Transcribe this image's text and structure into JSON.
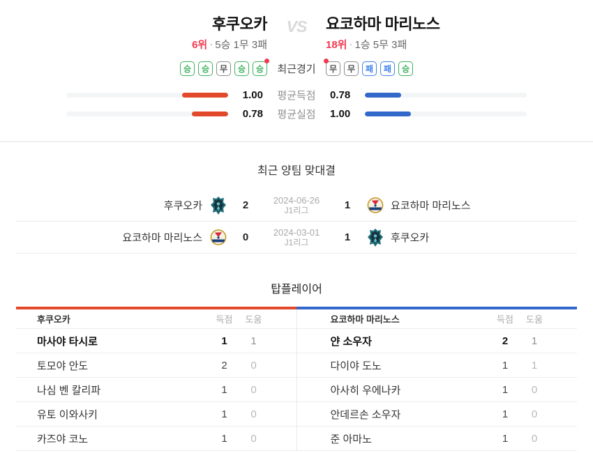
{
  "header": {
    "vs_label": "VS",
    "recent_label": "최근경기",
    "avg_goals_label": "평균득점",
    "avg_conceded_label": "평균실점",
    "rank_sep": "·",
    "home": {
      "name": "후쿠오카",
      "rank": "6위",
      "record": "5승 1무 3패",
      "form": [
        "승",
        "승",
        "무",
        "승",
        "승"
      ],
      "avg_goals": "1.00",
      "avg_conceded": "0.78"
    },
    "away": {
      "name": "요코하마 마리노스",
      "rank": "18위",
      "record": "1승 5무 3패",
      "form": [
        "무",
        "무",
        "패",
        "패",
        "승"
      ],
      "avg_goals": "0.78",
      "avg_conceded": "1.00"
    }
  },
  "h2h": {
    "title": "최근 양팀 맞대결",
    "matches": [
      {
        "home": "후쿠오카",
        "home_crest": "avispa-crest",
        "home_score": "2",
        "date": "2024-06-26",
        "league": "J1리그",
        "away_score": "1",
        "away_crest": "marinos-crest",
        "away": "요코하마 마리노스"
      },
      {
        "home": "요코하마 마리노스",
        "home_crest": "marinos-crest",
        "home_score": "0",
        "date": "2024-03-01",
        "league": "J1리그",
        "away_score": "1",
        "away_crest": "avispa-crest",
        "away": "후쿠오카"
      }
    ]
  },
  "top_players": {
    "title": "탑플레이어",
    "goals_label": "득점",
    "assists_label": "도움",
    "left": {
      "team": "후쿠오카",
      "players": [
        {
          "name": "마사야 타시로",
          "goals": "1",
          "assists": "1"
        },
        {
          "name": "토모야 안도",
          "goals": "2",
          "assists": "0"
        },
        {
          "name": "나심 벤 칼리파",
          "goals": "1",
          "assists": "0"
        },
        {
          "name": "유토 이와사키",
          "goals": "1",
          "assists": "0"
        },
        {
          "name": "카즈야 코노",
          "goals": "1",
          "assists": "0"
        }
      ]
    },
    "right": {
      "team": "요코하마 마리노스",
      "players": [
        {
          "name": "얀 소우자",
          "goals": "2",
          "assists": "1"
        },
        {
          "name": "다이야 도노",
          "goals": "1",
          "assists": "1"
        },
        {
          "name": "아사히 우에나카",
          "goals": "1",
          "assists": "0"
        },
        {
          "name": "안데르손 소우자",
          "goals": "1",
          "assists": "0"
        },
        {
          "name": "준 아마노",
          "goals": "1",
          "assists": "0"
        }
      ]
    }
  },
  "colors": {
    "home_accent": "#e2492b",
    "away_accent": "#3168c9",
    "rank_red": "#f03a50",
    "win_green": "#3cb05c",
    "loss_blue": "#3f83ea"
  }
}
